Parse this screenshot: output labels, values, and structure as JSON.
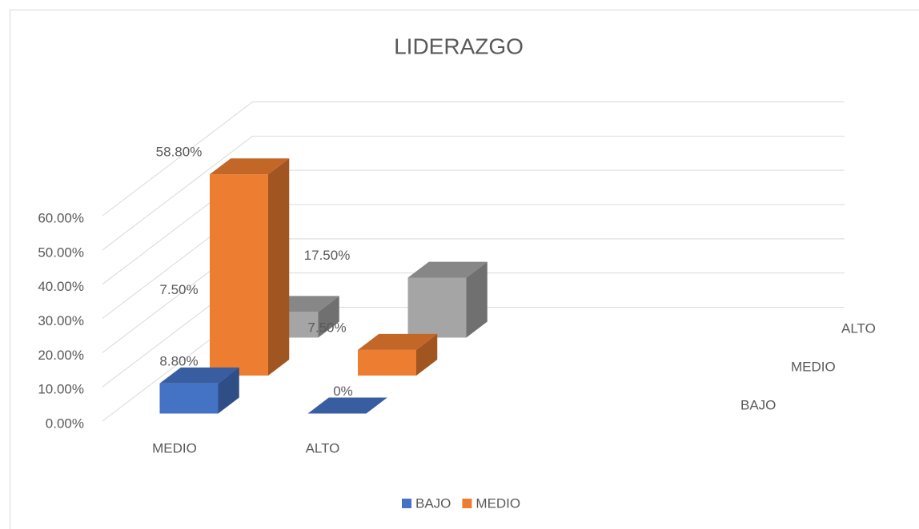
{
  "chart_data": {
    "type": "bar3d",
    "title": "LIDERAZGO",
    "categories": [
      "MEDIO",
      "ALTO"
    ],
    "series": [
      {
        "name": "BAJO",
        "color": "#4472c4",
        "values": [
          8.8,
          0
        ],
        "value_labels": [
          "8.80%",
          "0%"
        ],
        "in_legend": true
      },
      {
        "name": "MEDIO",
        "color": "#ed7d31",
        "values": [
          58.8,
          7.5
        ],
        "value_labels": [
          "58.80%",
          "7.50%"
        ],
        "in_legend": true
      },
      {
        "name": "ALTO",
        "color": "#a5a5a5",
        "values": [
          7.5,
          17.5
        ],
        "value_labels": [
          "7.50%",
          "17.50%"
        ],
        "in_legend": false
      }
    ],
    "ylim": [
      0,
      60
    ],
    "yticks": [
      {
        "value": 0,
        "label": "0.00%"
      },
      {
        "value": 10,
        "label": "10.00%"
      },
      {
        "value": 20,
        "label": "20.00%"
      },
      {
        "value": 30,
        "label": "30.00%"
      },
      {
        "value": 40,
        "label": "40.00%"
      },
      {
        "value": 50,
        "label": "50.00%"
      },
      {
        "value": 60,
        "label": "60.00%"
      }
    ],
    "grid": true,
    "legend": "bottom"
  }
}
